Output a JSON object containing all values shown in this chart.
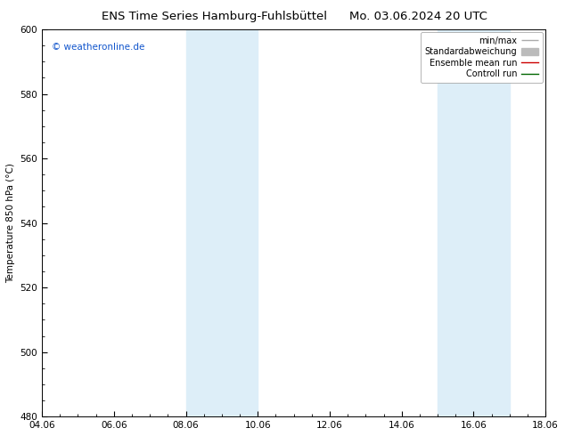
{
  "title_left": "ENS Time Series Hamburg-Fuhlsbüttel",
  "title_right": "Mo. 03.06.2024 20 UTC",
  "ylabel": "Temperature 850 hPa (°C)",
  "ylim": [
    480,
    600
  ],
  "yticks": [
    480,
    500,
    520,
    540,
    560,
    580,
    600
  ],
  "xlim": [
    0,
    14
  ],
  "xtick_labels": [
    "04.06",
    "06.06",
    "08.06",
    "10.06",
    "12.06",
    "14.06",
    "16.06",
    "18.06"
  ],
  "xtick_positions": [
    0,
    2,
    4,
    6,
    8,
    10,
    12,
    14
  ],
  "shaded_bands": [
    {
      "x_start": 4,
      "x_end": 6,
      "color": "#ddeef8"
    },
    {
      "x_start": 11,
      "x_end": 13,
      "color": "#ddeef8"
    }
  ],
  "legend_entries": [
    {
      "label": "min/max",
      "color": "#aaaaaa",
      "lw": 1.0
    },
    {
      "label": "Standardabweichung",
      "color": "#bbbbbb",
      "lw": 5.0
    },
    {
      "label": "Ensemble mean run",
      "color": "#cc0000",
      "lw": 1.0
    },
    {
      "label": "Controll run",
      "color": "#006600",
      "lw": 1.0
    }
  ],
  "watermark": "© weatheronline.de",
  "watermark_color": "#1155cc",
  "bg_color": "#ffffff",
  "plot_bg_color": "#ffffff",
  "border_color": "#000000",
  "title_fontsize": 9.5,
  "tick_fontsize": 7.5,
  "ylabel_fontsize": 7.5,
  "legend_fontsize": 7.0,
  "watermark_fontsize": 7.5
}
